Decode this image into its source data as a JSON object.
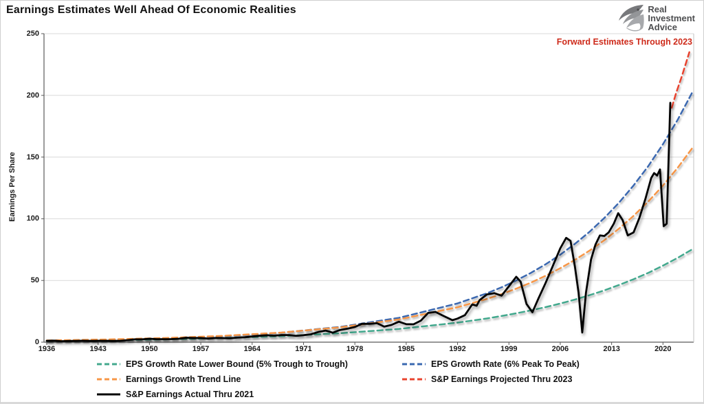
{
  "header": {
    "title": "Earnings Estimates Well Ahead Of Economic Realities",
    "logo": {
      "line1": "Real",
      "line2": "Investment",
      "line3": "Advice"
    }
  },
  "annotation": {
    "text": "Forward Estimates Through 2023",
    "color": "#CE2B1B"
  },
  "chart_data": {
    "type": "line",
    "title": "Earnings Estimates Well Ahead Of Economic Realities",
    "xlabel": "",
    "ylabel": "Earnings Per Share",
    "xlim": [
      1936,
      2024
    ],
    "ylim": [
      0,
      250
    ],
    "y_ticks": [
      0,
      50,
      100,
      150,
      200,
      250
    ],
    "x_ticks": [
      1936,
      1943,
      1950,
      1957,
      1964,
      1971,
      1978,
      1985,
      1992,
      1999,
      2006,
      2013,
      2020
    ],
    "grid": "horizontal",
    "legend_position": "bottom",
    "colors": {
      "axis": "#595959",
      "gridline": "#d9d9d9",
      "right_border": "#c0c0c0"
    },
    "series": [
      {
        "name": "EPS Growth Rate Lower Bound (5% Trough to Trough)",
        "color": "#43A88D",
        "style": "dashed",
        "points": [
          [
            1936,
            1.03
          ],
          [
            1944,
            1.52
          ],
          [
            1952,
            2.25
          ],
          [
            1960,
            3.32
          ],
          [
            1968,
            4.9
          ],
          [
            1976,
            7.24
          ],
          [
            1984,
            10.7
          ],
          [
            1992,
            15.8
          ],
          [
            1996,
            19.2
          ],
          [
            1998,
            21.2
          ],
          [
            2000,
            23.4
          ],
          [
            2002,
            25.8
          ],
          [
            2004,
            28.4
          ],
          [
            2006,
            31.3
          ],
          [
            2008,
            34.5
          ],
          [
            2010,
            38.1
          ],
          [
            2012,
            42.0
          ],
          [
            2014,
            46.3
          ],
          [
            2016,
            51.0
          ],
          [
            2018,
            56.2
          ],
          [
            2020,
            62.0
          ],
          [
            2022,
            68.3
          ],
          [
            2024,
            75.3
          ]
        ]
      },
      {
        "name": "EPS Growth Rate (6% Peak To Peak)",
        "color": "#3A68B0",
        "style": "dashed",
        "points": [
          [
            1936,
            1.2
          ],
          [
            1944,
            1.91
          ],
          [
            1952,
            3.05
          ],
          [
            1960,
            4.86
          ],
          [
            1968,
            7.74
          ],
          [
            1976,
            12.34
          ],
          [
            1984,
            19.7
          ],
          [
            1992,
            31.4
          ],
          [
            1996,
            39.6
          ],
          [
            1998,
            44.5
          ],
          [
            2000,
            50.0
          ],
          [
            2002,
            56.2
          ],
          [
            2004,
            63.1
          ],
          [
            2006,
            70.9
          ],
          [
            2008,
            79.7
          ],
          [
            2010,
            89.5
          ],
          [
            2012,
            100.6
          ],
          [
            2014,
            113.0
          ],
          [
            2016,
            127.0
          ],
          [
            2018,
            142.7
          ],
          [
            2020,
            160.4
          ],
          [
            2022,
            180.2
          ],
          [
            2024,
            202.5
          ]
        ]
      },
      {
        "name": "Earnings Growth Trend Line",
        "color": "#F79646",
        "style": "dashed",
        "points": [
          [
            1936,
            1.41
          ],
          [
            1944,
            2.16
          ],
          [
            1952,
            3.32
          ],
          [
            1960,
            5.1
          ],
          [
            1968,
            7.82
          ],
          [
            1976,
            12.0
          ],
          [
            1984,
            18.42
          ],
          [
            1992,
            28.3
          ],
          [
            1996,
            35.0
          ],
          [
            1998,
            39.0
          ],
          [
            2000,
            43.4
          ],
          [
            2002,
            48.3
          ],
          [
            2004,
            53.8
          ],
          [
            2006,
            59.9
          ],
          [
            2008,
            66.7
          ],
          [
            2010,
            74.2
          ],
          [
            2012,
            82.6
          ],
          [
            2014,
            92.0
          ],
          [
            2016,
            102.4
          ],
          [
            2018,
            114.0
          ],
          [
            2020,
            126.9
          ],
          [
            2022,
            141.3
          ],
          [
            2024,
            157.3
          ]
        ]
      },
      {
        "name": "S&P Earnings Projected Thru 2023",
        "color": "#E8432D",
        "style": "dashed",
        "points": [
          [
            2021.2,
            190
          ],
          [
            2021.8,
            202
          ],
          [
            2022.6,
            216
          ],
          [
            2023.6,
            235
          ]
        ]
      },
      {
        "name": "S&P Earnings Actual Thru 2021",
        "color": "#000000",
        "style": "solid",
        "points": [
          [
            1936,
            1.1
          ],
          [
            1937,
            1.25
          ],
          [
            1938,
            0.8
          ],
          [
            1939,
            0.95
          ],
          [
            1940,
            1.05
          ],
          [
            1941,
            1.15
          ],
          [
            1942,
            1.0
          ],
          [
            1943,
            1.1
          ],
          [
            1944,
            1.1
          ],
          [
            1945,
            1.0
          ],
          [
            1946,
            1.1
          ],
          [
            1947,
            1.6
          ],
          [
            1948,
            2.3
          ],
          [
            1949,
            2.3
          ],
          [
            1950,
            2.8
          ],
          [
            1951,
            2.45
          ],
          [
            1952,
            2.4
          ],
          [
            1953,
            2.5
          ],
          [
            1954,
            2.8
          ],
          [
            1955,
            3.6
          ],
          [
            1956,
            3.4
          ],
          [
            1957,
            3.4
          ],
          [
            1958,
            2.9
          ],
          [
            1959,
            3.4
          ],
          [
            1960,
            3.3
          ],
          [
            1961,
            3.2
          ],
          [
            1962,
            3.7
          ],
          [
            1963,
            4.0
          ],
          [
            1964,
            4.6
          ],
          [
            1965,
            5.2
          ],
          [
            1966,
            5.6
          ],
          [
            1967,
            5.3
          ],
          [
            1968,
            5.8
          ],
          [
            1969,
            5.8
          ],
          [
            1970,
            5.1
          ],
          [
            1971,
            5.7
          ],
          [
            1972,
            6.4
          ],
          [
            1973,
            8.2
          ],
          [
            1974,
            9.4
          ],
          [
            1975,
            7.7
          ],
          [
            1976,
            9.9
          ],
          [
            1977,
            10.9
          ],
          [
            1978,
            12.3
          ],
          [
            1979,
            14.9
          ],
          [
            1980,
            14.8
          ],
          [
            1981,
            15.4
          ],
          [
            1982,
            12.6
          ],
          [
            1983,
            14.0
          ],
          [
            1984,
            16.6
          ],
          [
            1985,
            14.6
          ],
          [
            1986,
            14.5
          ],
          [
            1987,
            17.5
          ],
          [
            1988,
            23.8
          ],
          [
            1989,
            24.5
          ],
          [
            1990,
            21.5
          ],
          [
            1991.3,
            17.8
          ],
          [
            1992,
            19.1
          ],
          [
            1993,
            21.9
          ],
          [
            1994,
            30.6
          ],
          [
            1994.6,
            29.5
          ],
          [
            1995,
            34.0
          ],
          [
            1996,
            38.7
          ],
          [
            1997,
            39.7
          ],
          [
            1998,
            37.7
          ],
          [
            1999,
            45.2
          ],
          [
            2000,
            53.0
          ],
          [
            2000.6,
            49.0
          ],
          [
            2001.4,
            31.0
          ],
          [
            2002.2,
            24.2
          ],
          [
            2003,
            35.0
          ],
          [
            2004,
            48.0
          ],
          [
            2005,
            62.0
          ],
          [
            2006,
            76.0
          ],
          [
            2006.8,
            84.5
          ],
          [
            2007.4,
            82.0
          ],
          [
            2008,
            61.0
          ],
          [
            2008.5,
            40.0
          ],
          [
            2009,
            7.8
          ],
          [
            2009.5,
            40.0
          ],
          [
            2010.2,
            67.0
          ],
          [
            2010.8,
            79.0
          ],
          [
            2011.4,
            86.5
          ],
          [
            2012,
            86.0
          ],
          [
            2012.6,
            89.0
          ],
          [
            2013.3,
            96.0
          ],
          [
            2013.9,
            104.5
          ],
          [
            2014.5,
            99.0
          ],
          [
            2015.2,
            86.5
          ],
          [
            2016,
            89.0
          ],
          [
            2016.8,
            101.0
          ],
          [
            2017.6,
            116.0
          ],
          [
            2018.4,
            133.0
          ],
          [
            2018.8,
            137.0
          ],
          [
            2019.2,
            135.0
          ],
          [
            2019.6,
            140.0
          ],
          [
            2020.1,
            94.0
          ],
          [
            2020.5,
            96.0
          ],
          [
            2021,
            194.0
          ]
        ]
      }
    ]
  }
}
